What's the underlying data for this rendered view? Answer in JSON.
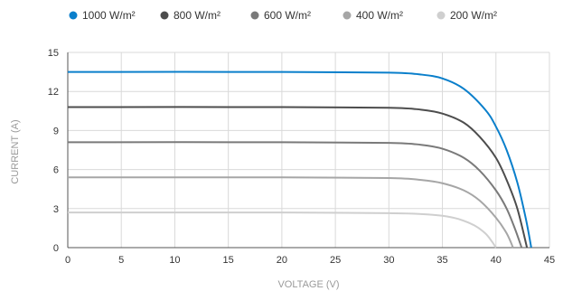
{
  "chart_data": {
    "type": "line",
    "xlabel": "VOLTAGE (V)",
    "ylabel": "CURRENT (A)",
    "xlim": [
      0,
      45
    ],
    "ylim": [
      0,
      15
    ],
    "xticks": [
      0,
      5,
      10,
      15,
      20,
      25,
      30,
      35,
      40,
      45
    ],
    "yticks": [
      0,
      3,
      6,
      9,
      12,
      15
    ],
    "grid": true,
    "legend_position": "top",
    "series": [
      {
        "name": "1000 W/m²",
        "color": "#0a7fcb",
        "isc": 13.5,
        "voc": 43.3,
        "points": [
          [
            0,
            13.5
          ],
          [
            20,
            13.5
          ],
          [
            30,
            13.45
          ],
          [
            33,
            13.3
          ],
          [
            35,
            13.0
          ],
          [
            37,
            12.2
          ],
          [
            39,
            10.6
          ],
          [
            40,
            9.3
          ],
          [
            41,
            7.5
          ],
          [
            42,
            5.0
          ],
          [
            42.8,
            2.2
          ],
          [
            43.3,
            0
          ]
        ]
      },
      {
        "name": "800 W/m²",
        "color": "#4d4d4d",
        "isc": 10.8,
        "voc": 42.9,
        "points": [
          [
            0,
            10.8
          ],
          [
            20,
            10.8
          ],
          [
            30,
            10.75
          ],
          [
            33,
            10.6
          ],
          [
            35,
            10.3
          ],
          [
            37,
            9.6
          ],
          [
            38.5,
            8.5
          ],
          [
            40,
            6.9
          ],
          [
            41,
            5.2
          ],
          [
            42,
            3.0
          ],
          [
            42.9,
            0
          ]
        ]
      },
      {
        "name": "600 W/m²",
        "color": "#7a7a7a",
        "isc": 8.1,
        "voc": 42.4,
        "points": [
          [
            0,
            8.1
          ],
          [
            20,
            8.1
          ],
          [
            30,
            8.05
          ],
          [
            33,
            7.9
          ],
          [
            35,
            7.6
          ],
          [
            37,
            6.9
          ],
          [
            38.5,
            5.9
          ],
          [
            40,
            4.4
          ],
          [
            41,
            3.0
          ],
          [
            41.8,
            1.4
          ],
          [
            42.4,
            0
          ]
        ]
      },
      {
        "name": "400 W/m²",
        "color": "#a6a6a6",
        "isc": 5.4,
        "voc": 41.6,
        "points": [
          [
            0,
            5.4
          ],
          [
            20,
            5.4
          ],
          [
            30,
            5.35
          ],
          [
            33,
            5.2
          ],
          [
            35,
            4.95
          ],
          [
            37,
            4.4
          ],
          [
            38.5,
            3.6
          ],
          [
            40,
            2.3
          ],
          [
            41,
            1.1
          ],
          [
            41.6,
            0
          ]
        ]
      },
      {
        "name": "200 W/m²",
        "color": "#cfcfcf",
        "isc": 2.7,
        "voc": 40.0,
        "points": [
          [
            0,
            2.7
          ],
          [
            20,
            2.7
          ],
          [
            30,
            2.65
          ],
          [
            33,
            2.58
          ],
          [
            35,
            2.45
          ],
          [
            36.5,
            2.2
          ],
          [
            38,
            1.7
          ],
          [
            39,
            1.1
          ],
          [
            39.6,
            0.5
          ],
          [
            40.0,
            0
          ]
        ]
      }
    ]
  }
}
